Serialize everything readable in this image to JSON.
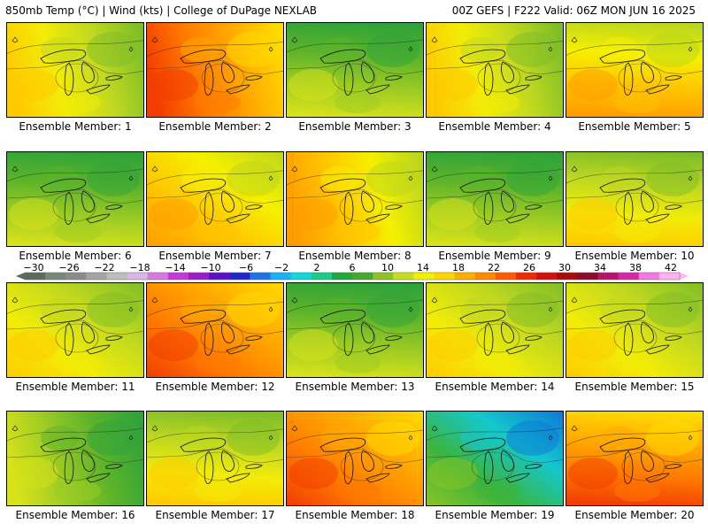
{
  "header": {
    "left": "850mb Temp (°C) | Wind (kts) | College of DuPage NEXLAB",
    "right": "00Z GEFS | F222 Valid: 06Z MON JUN 16 2025"
  },
  "member_label_prefix": "Ensemble Member: ",
  "members": [
    {
      "number": "1",
      "warmth": 0.45,
      "warm_side": "west",
      "palette": "moderate"
    },
    {
      "number": "2",
      "warmth": 0.8,
      "warm_side": "west",
      "palette": "hot"
    },
    {
      "number": "3",
      "warmth": 0.3,
      "warm_side": "south",
      "palette": "cool"
    },
    {
      "number": "4",
      "warmth": 0.6,
      "warm_side": "west",
      "palette": "moderate"
    },
    {
      "number": "5",
      "warmth": 0.65,
      "warm_side": "south",
      "palette": "warm"
    },
    {
      "number": "6",
      "warmth": 0.3,
      "warm_side": "south",
      "palette": "cool"
    },
    {
      "number": "7",
      "warmth": 0.7,
      "warm_side": "southwest",
      "palette": "warm"
    },
    {
      "number": "8",
      "warmth": 0.7,
      "warm_side": "west",
      "palette": "warm"
    },
    {
      "number": "9",
      "warmth": 0.35,
      "warm_side": "south",
      "palette": "cool"
    },
    {
      "number": "10",
      "warmth": 0.5,
      "warm_side": "south",
      "palette": "moderate"
    },
    {
      "number": "11",
      "warmth": 0.45,
      "warm_side": "southwest",
      "palette": "moderate"
    },
    {
      "number": "12",
      "warmth": 0.75,
      "warm_side": "southwest",
      "palette": "hot"
    },
    {
      "number": "13",
      "warmth": 0.3,
      "warm_side": "south",
      "palette": "cool"
    },
    {
      "number": "14",
      "warmth": 0.55,
      "warm_side": "southwest",
      "palette": "moderate"
    },
    {
      "number": "15",
      "warmth": 0.4,
      "warm_side": "southwest",
      "palette": "moderate"
    },
    {
      "number": "16",
      "warmth": 0.3,
      "warm_side": "west",
      "palette": "cool"
    },
    {
      "number": "17",
      "warmth": 0.5,
      "warm_side": "south",
      "palette": "moderate"
    },
    {
      "number": "18",
      "warmth": 0.75,
      "warm_side": "southwest",
      "palette": "hot"
    },
    {
      "number": "19",
      "warmth": 0.25,
      "warm_side": "southwest",
      "palette": "cold"
    },
    {
      "number": "20",
      "warmth": 0.85,
      "warm_side": "south",
      "palette": "hot"
    }
  ],
  "colorbar": {
    "tick_labels": [
      "−30",
      "−26",
      "−22",
      "−18",
      "−14",
      "−10",
      "−6",
      "−2",
      "2",
      "6",
      "10",
      "14",
      "18",
      "22",
      "26",
      "30",
      "34",
      "38",
      "42"
    ],
    "colors": [
      "#5a6b5e",
      "#78867b",
      "#8c8c8c",
      "#a4a4a4",
      "#bdbdbd",
      "#d8b6e6",
      "#d47ae0",
      "#c439d6",
      "#9b1cc9",
      "#5a12c4",
      "#1f28c8",
      "#1c74e6",
      "#16b4f2",
      "#13d8d8",
      "#1bcb8c",
      "#1fa83c",
      "#46a82c",
      "#8cc426",
      "#c8dc1e",
      "#f2f200",
      "#ffd500",
      "#ffae00",
      "#ff8a00",
      "#ff5a00",
      "#f02a00",
      "#d40f0f",
      "#a80a0a",
      "#8a0a30",
      "#b4146e",
      "#d428a8",
      "#f07ae0",
      "#ffb4f0"
    ],
    "pattern": "paired"
  },
  "palettes": {
    "cold": [
      "#0c78d8",
      "#14c8cc",
      "#3cb43c",
      "#8cc426"
    ],
    "cool": [
      "#2fa33a",
      "#5cb32a",
      "#9ccb24",
      "#d8e21a"
    ],
    "moderate": [
      "#7fbe28",
      "#c0d820",
      "#f2ec08",
      "#ffca00"
    ],
    "warm": [
      "#bcd61e",
      "#f5f000",
      "#ffc400",
      "#ff9c00"
    ],
    "hot": [
      "#ffdc00",
      "#ffaa00",
      "#ff7a00",
      "#f23c00"
    ]
  }
}
